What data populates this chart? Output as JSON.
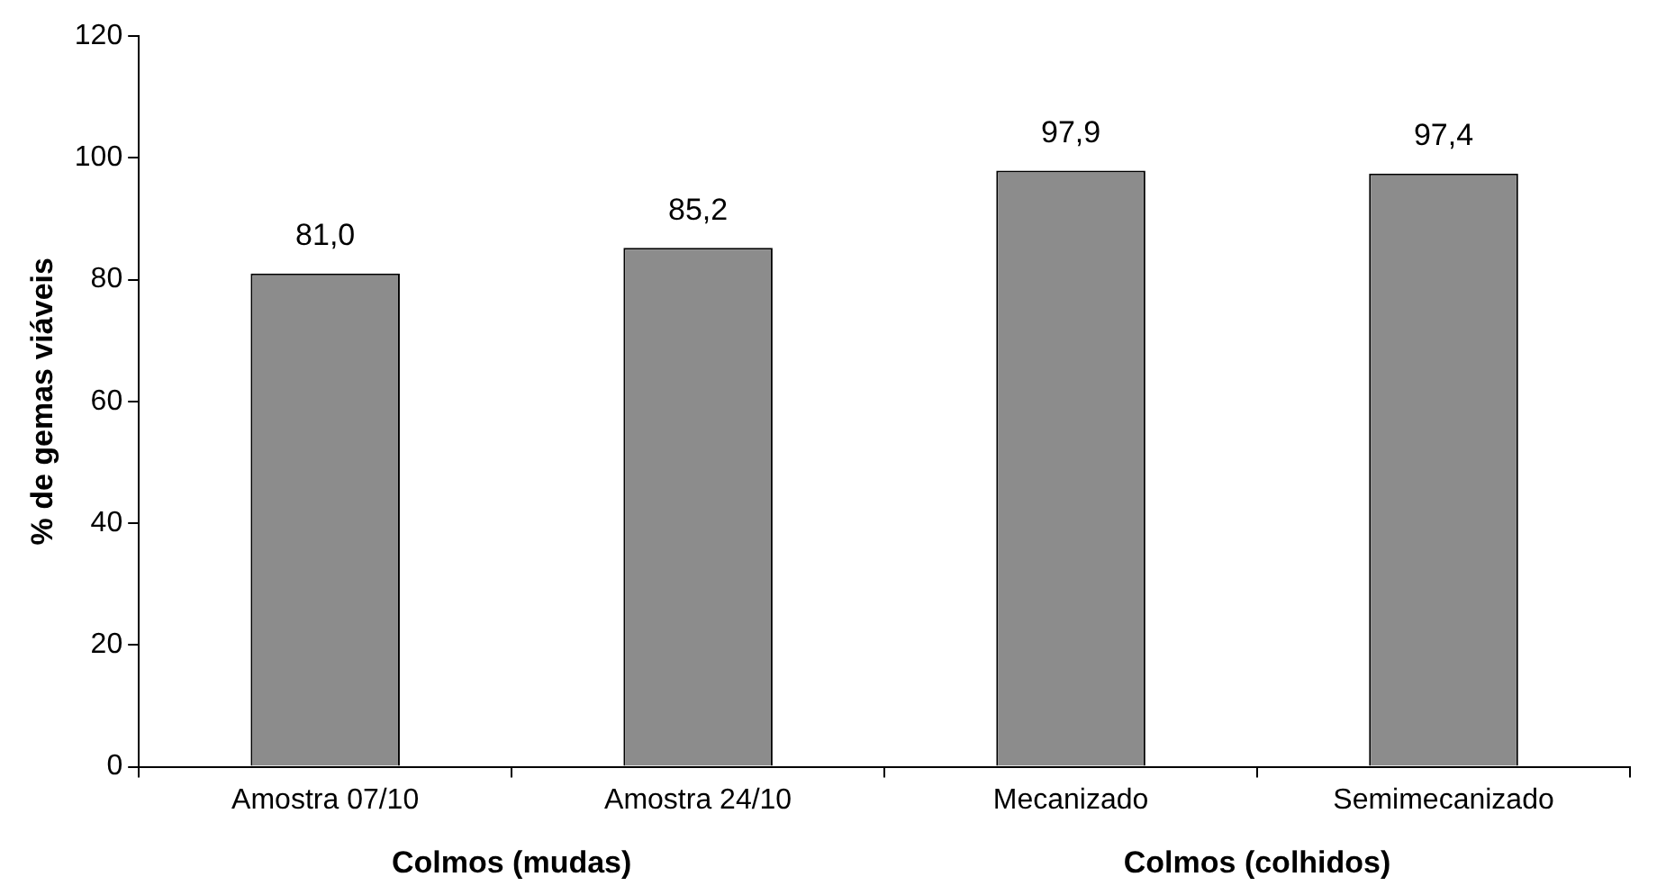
{
  "chart_data": {
    "type": "bar",
    "ylabel": "% de gemas viáveis",
    "categories": [
      "Amostra 07/10",
      "Amostra 24/10",
      "Mecanizado",
      "Semimecanizado"
    ],
    "values": [
      81.0,
      85.2,
      97.9,
      97.4
    ],
    "value_labels": [
      "81,0",
      "85,2",
      "97,9",
      "97,4"
    ],
    "colors": [
      "#8c8c8c",
      "#8c8c8c",
      "#8c8c8c",
      "#8c8c8c"
    ],
    "ylim": [
      0,
      120
    ],
    "yticks": [
      0,
      20,
      40,
      60,
      80,
      100,
      120
    ],
    "grid": false,
    "legend": false,
    "annotations": [
      "Colmos (mudas)",
      "Colmos (colhidos)"
    ]
  }
}
